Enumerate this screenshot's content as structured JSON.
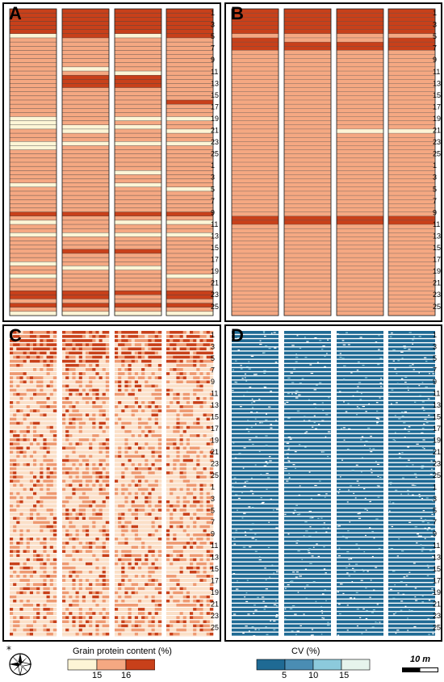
{
  "panels": {
    "A": {
      "letter": "A"
    },
    "B": {
      "letter": "B"
    },
    "C": {
      "letter": "C"
    },
    "D": {
      "letter": "D"
    }
  },
  "plot_numbers": [
    "1",
    "3",
    "5",
    "7",
    "9",
    "11",
    "13",
    "15",
    "17",
    "19",
    "21",
    "23",
    "25",
    "1",
    "3",
    "5",
    "7",
    "9",
    "11",
    "13",
    "15",
    "17",
    "19",
    "21",
    "23",
    "25"
  ],
  "legend_protein": {
    "title": "Grain protein content (%)",
    "ticks": [
      "15",
      "16"
    ],
    "colors": [
      "#fdf5d6",
      "#f5a882",
      "#c8401a"
    ]
  },
  "legend_cv": {
    "title": "CV (%)",
    "ticks": [
      "5",
      "10",
      "15"
    ],
    "colors": [
      "#1f6a94",
      "#4a8db3",
      "#8ccadc",
      "#e6f4ec"
    ]
  },
  "scale_bar": {
    "label": "10 m"
  },
  "north_arrow": {
    "symbol": "*",
    "icon": "compass-rose-icon"
  },
  "panel_A_classes": [
    "hhhh",
    "hhhh",
    "hhhh",
    "hhhh",
    "hhhh",
    "hhhh",
    "lhlh",
    "mmmm",
    "mmmm",
    "mmmm",
    "mmmm",
    "mmmm",
    "mmmm",
    "mmmm",
    "mlmm",
    "mmlm",
    "mhhm",
    "mhhm",
    "mhhm",
    "mmmm",
    "mmmm",
    "mmmm",
    "mmmh",
    "mmmm",
    "mmmm",
    "mmmm",
    "lmll",
    "lmmm",
    "lllm",
    "mlml",
    "mmmm",
    "mmmm",
    "llll",
    "lmmm",
    "mmmm",
    "mmmm",
    "mmmm",
    "mmmm",
    "mmmm",
    "mmlm",
    "mmmm",
    "mmmm",
    "lmlm",
    "mmml",
    "mmmm",
    "mmmm",
    "mmmm",
    "mmmm",
    "mmmm",
    "hhhh",
    "mmmm",
    "lmll",
    "mmmm",
    "mmmm",
    "llll",
    "mmmm",
    "mmmm",
    "mmmm",
    "mhhm",
    "mmmm",
    "mmmm",
    "lmmm",
    "mllm",
    "mmmm",
    "lmml",
    "mmmm",
    "mmmm",
    "mmmm",
    "hhhh",
    "hhmh",
    "mmmm",
    "hhhh",
    "mmmm",
    "llll"
  ]
}
